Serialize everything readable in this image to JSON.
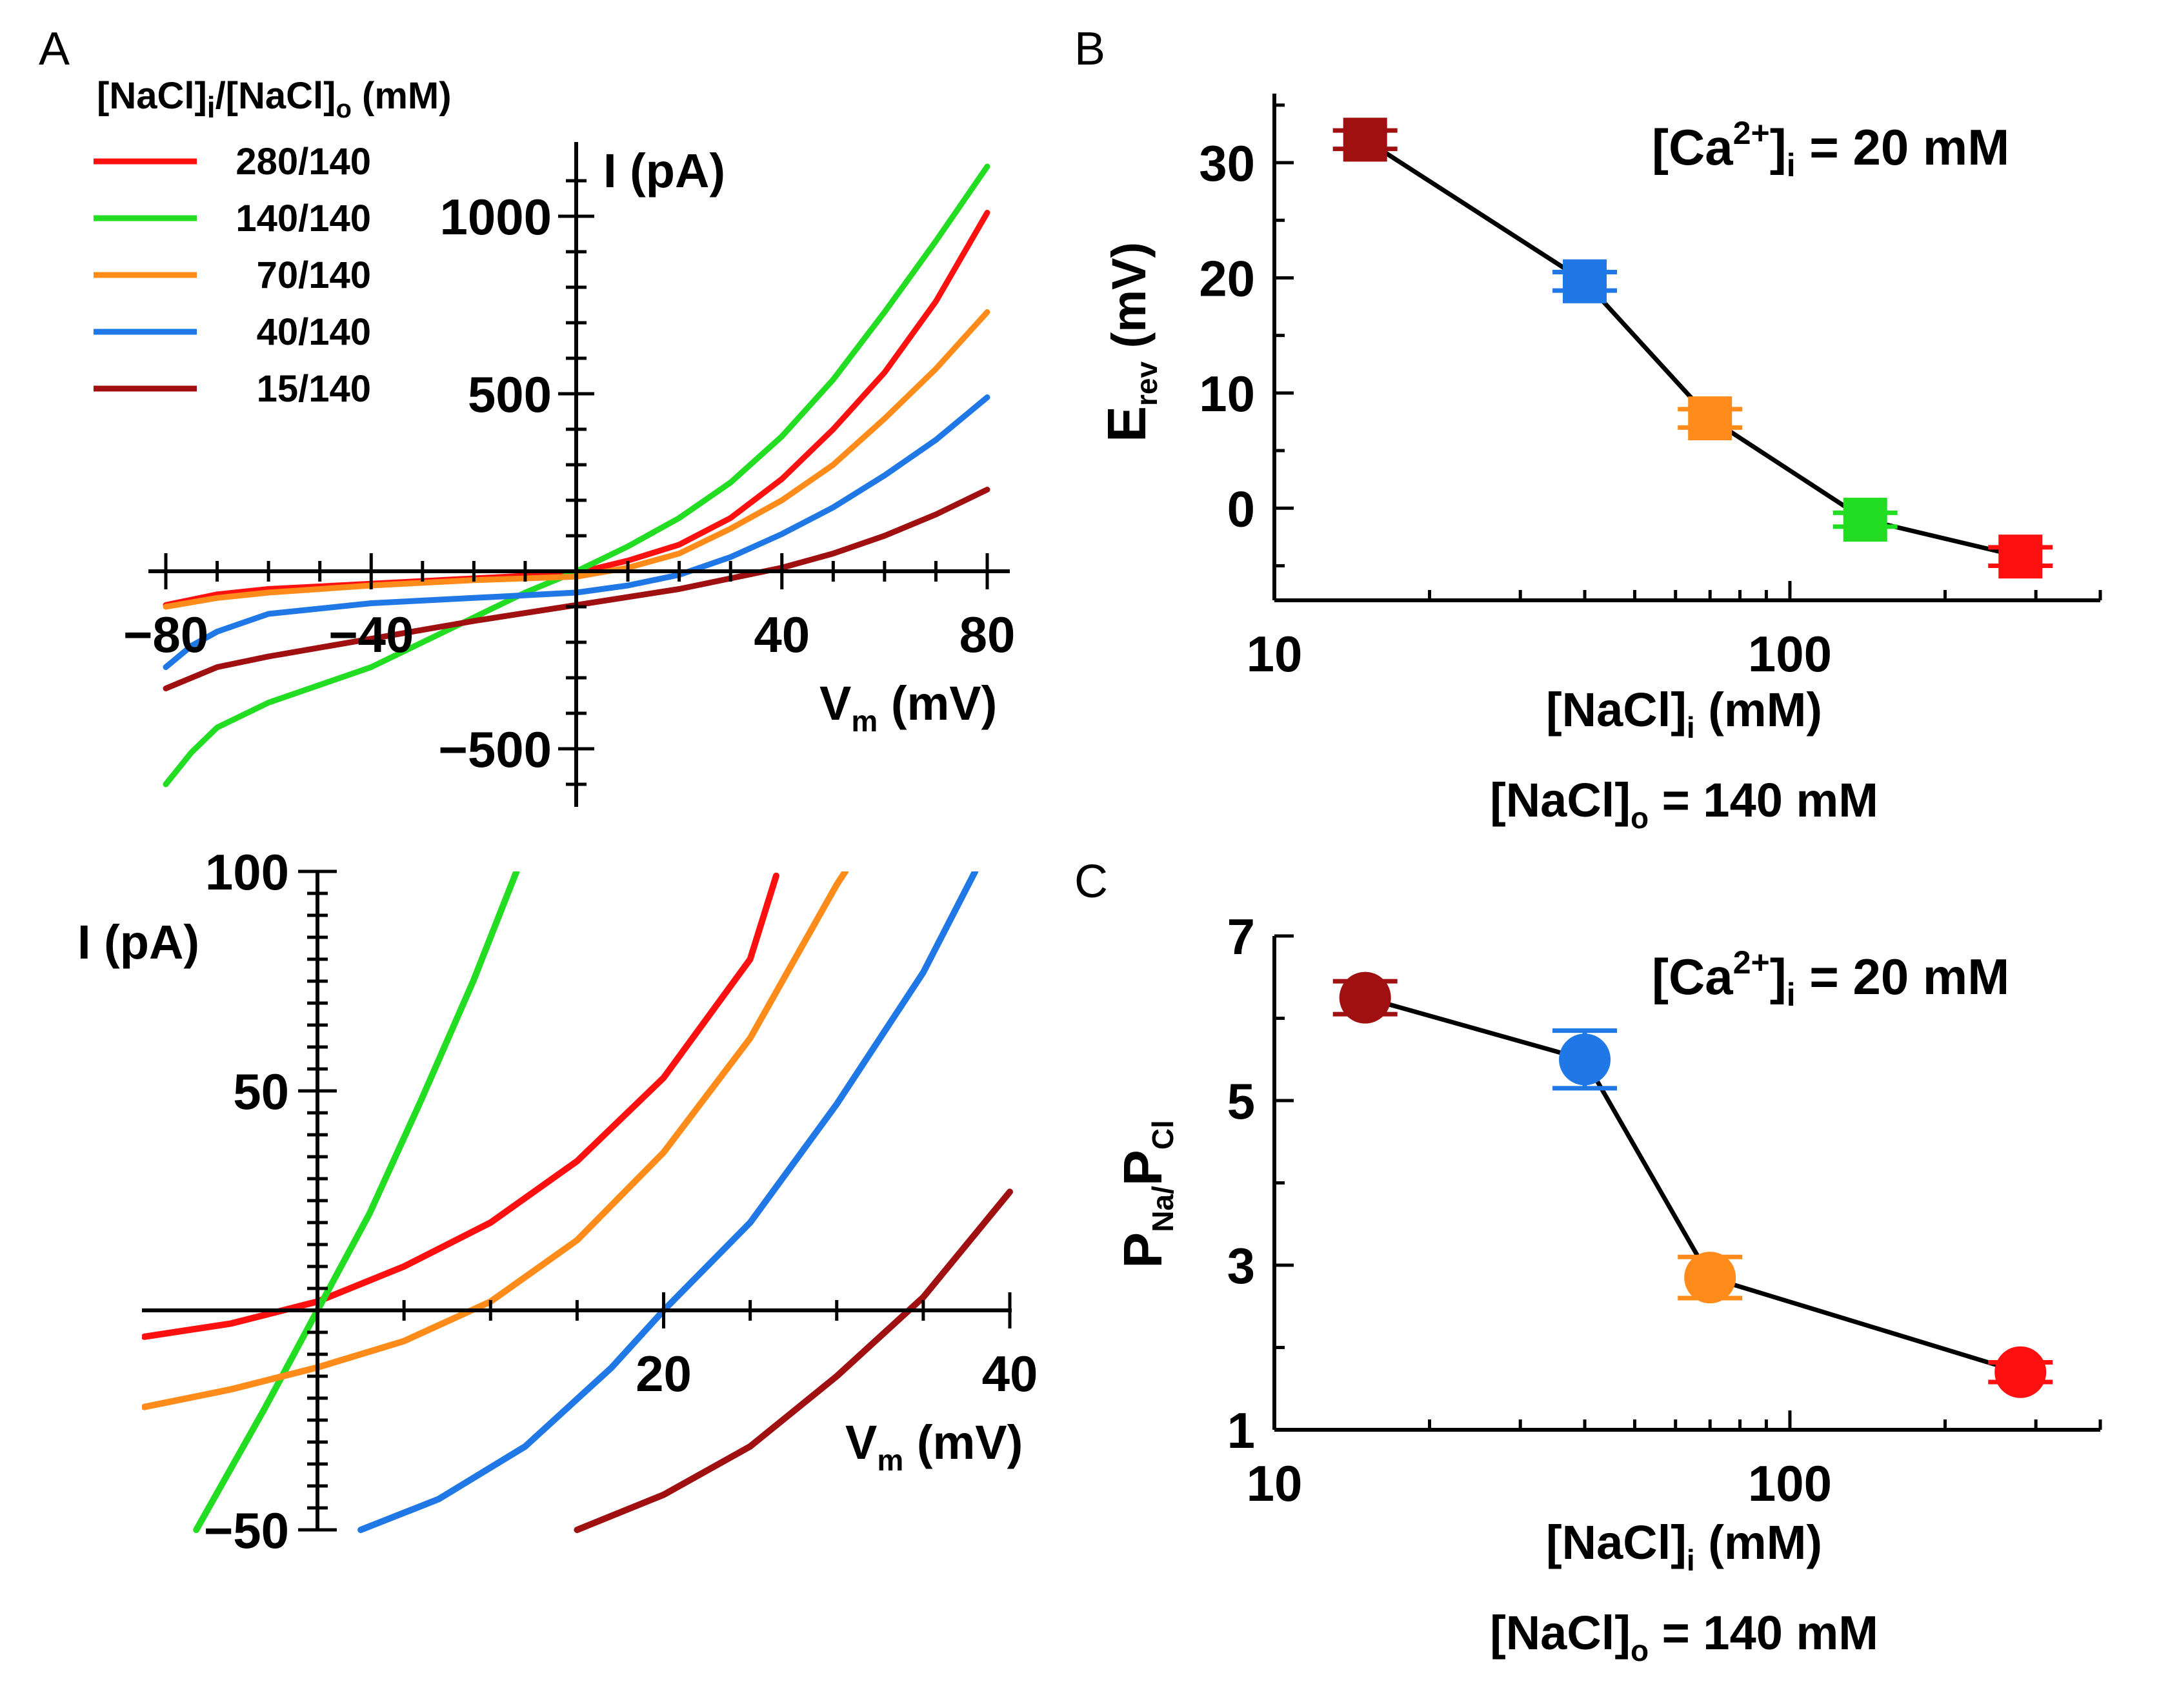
{
  "figure": {
    "panel_a_label": "A",
    "panel_b_label": "B",
    "panel_c_label": "C"
  },
  "colors": {
    "280/140": "#ff1010",
    "140/140": "#22dd22",
    "70/140": "#ff8c1a",
    "40/140": "#1f78e6",
    "15/140": "#a01010"
  },
  "legend": {
    "title_main": "[NaCl]",
    "title_sub1": "i",
    "title_mid": "/[NaCl]",
    "title_sub2": "o",
    "title_end": " (mM)",
    "entries": [
      "280/140",
      "140/140",
      "70/140",
      "40/140",
      "15/140"
    ]
  },
  "chart_data": [
    {
      "id": "A-top",
      "type": "line",
      "xlabel_main": "V",
      "xlabel_sub": "m",
      "xlabel_end": " (mV)",
      "ylabel": "I (pA)",
      "xlim": [
        -80,
        80
      ],
      "ylim": [
        -600,
        1150
      ],
      "xticks": [
        "−80",
        "−40",
        "40",
        "80"
      ],
      "xtick_values": [
        -80,
        -40,
        40,
        80
      ],
      "yticks": [
        "−500",
        "500",
        "1000"
      ],
      "ytick_values": [
        -500,
        500,
        1000
      ],
      "series": [
        {
          "name": "280/140",
          "x": [
            -80,
            -70,
            -60,
            -40,
            -20,
            0,
            10,
            20,
            30,
            40,
            50,
            60,
            70,
            80
          ],
          "values": [
            -95,
            -65,
            -50,
            -35,
            -20,
            -5,
            30,
            75,
            150,
            260,
            400,
            560,
            760,
            1010
          ]
        },
        {
          "name": "140/140",
          "x": [
            -80,
            -75,
            -70,
            -60,
            -50,
            -40,
            -30,
            -20,
            -10,
            0,
            10,
            20,
            30,
            40,
            50,
            60,
            70,
            80
          ],
          "values": [
            -600,
            -510,
            -440,
            -370,
            -320,
            -270,
            -200,
            -130,
            -60,
            0,
            70,
            150,
            250,
            380,
            540,
            730,
            930,
            1140
          ]
        },
        {
          "name": "70/140",
          "x": [
            -80,
            -70,
            -60,
            -40,
            -20,
            0,
            10,
            20,
            30,
            40,
            50,
            60,
            70,
            80
          ],
          "values": [
            -100,
            -75,
            -60,
            -40,
            -25,
            -15,
            10,
            50,
            120,
            200,
            300,
            430,
            570,
            730
          ]
        },
        {
          "name": "40/140",
          "x": [
            -80,
            -75,
            -70,
            -60,
            -40,
            -20,
            0,
            10,
            20,
            30,
            40,
            50,
            60,
            70,
            80
          ],
          "values": [
            -270,
            -210,
            -170,
            -120,
            -90,
            -75,
            -60,
            -40,
            -10,
            40,
            105,
            180,
            270,
            370,
            490
          ]
        },
        {
          "name": "15/140",
          "x": [
            -80,
            -70,
            -60,
            -40,
            -20,
            0,
            20,
            30,
            40,
            50,
            60,
            70,
            80
          ],
          "values": [
            -330,
            -270,
            -240,
            -190,
            -140,
            -95,
            -50,
            -20,
            10,
            50,
            100,
            160,
            230
          ]
        }
      ]
    },
    {
      "id": "A-bottom",
      "type": "line",
      "xlabel_main": "V",
      "xlabel_sub": "m",
      "xlabel_end": " (mV)",
      "ylabel": "I (pA)",
      "xlim": [
        -10,
        40
      ],
      "ylim": [
        -50,
        100
      ],
      "xticks": [
        "20",
        "40"
      ],
      "xtick_values": [
        20,
        40
      ],
      "yticks": [
        "−50",
        "50",
        "100"
      ],
      "ytick_values": [
        -50,
        50,
        100
      ],
      "series": [
        {
          "name": "280/140",
          "x": [
            -10,
            -5,
            0,
            5,
            10,
            15,
            20,
            25,
            26.5
          ],
          "values": [
            -6,
            -3,
            2,
            10,
            20,
            34,
            53,
            80,
            99
          ]
        },
        {
          "name": "140/140",
          "x": [
            -7,
            -5,
            -3,
            0,
            3,
            6,
            9,
            11.5
          ],
          "values": [
            -50,
            -36,
            -22,
            0,
            22,
            48,
            75,
            100
          ]
        },
        {
          "name": "70/140",
          "x": [
            -10,
            -5,
            0,
            5,
            10,
            15,
            20,
            25,
            30,
            30.5
          ],
          "values": [
            -22,
            -18,
            -13,
            -7,
            2,
            16,
            36,
            62,
            97,
            100
          ]
        },
        {
          "name": "40/140",
          "x": [
            2.5,
            7,
            12,
            17,
            20,
            25,
            30,
            35,
            38
          ],
          "values": [
            -50,
            -43,
            -31,
            -13,
            0,
            20,
            47,
            77,
            100
          ]
        },
        {
          "name": "15/140",
          "x": [
            15,
            20,
            25,
            30,
            35,
            40
          ],
          "values": [
            -50,
            -42,
            -31,
            -15,
            3,
            27
          ]
        }
      ]
    },
    {
      "id": "B",
      "type": "scatter",
      "xscale": "log",
      "xlim": [
        10,
        400
      ],
      "ylim": [
        -8,
        36
      ],
      "xticks": [
        "10",
        "100"
      ],
      "xtick_values": [
        10,
        100
      ],
      "yticks": [
        "0",
        "10",
        "20",
        "30"
      ],
      "ytick_values": [
        0,
        10,
        20,
        30
      ],
      "ylabel_main": "E",
      "ylabel_sub": "rev",
      "ylabel_end": " (mV)",
      "xlabel_main": "[NaCl]",
      "xlabel_sub": "i",
      "xlabel_end": " (mM)",
      "annotation_main": "[Ca",
      "annotation_sup": "2+",
      "annotation_mid": "]",
      "annotation_sub": "i",
      "annotation_end": " = 20 mM",
      "note_main": "[NaCl]",
      "note_sub": "o",
      "note_end": " = 140 mM",
      "points": [
        {
          "name": "15/140",
          "x": 15,
          "y": 32,
          "err": 0.8
        },
        {
          "name": "40/140",
          "x": 40,
          "y": 19.7,
          "err": 0.8
        },
        {
          "name": "70/140",
          "x": 70,
          "y": 7.8,
          "err": 0.8
        },
        {
          "name": "140/140",
          "x": 140,
          "y": -1,
          "err": 0.6
        },
        {
          "name": "280/140",
          "x": 280,
          "y": -4.2,
          "err": 0.8
        }
      ]
    },
    {
      "id": "C",
      "type": "scatter",
      "xscale": "log",
      "xlim": [
        10,
        400
      ],
      "ylim": [
        1,
        7
      ],
      "xticks": [
        "10",
        "100"
      ],
      "xtick_values": [
        10,
        100
      ],
      "yticks": [
        "1",
        "3",
        "5",
        "7"
      ],
      "ytick_values": [
        1,
        3,
        5,
        7
      ],
      "ylabel_p1": "P",
      "ylabel_s1": "Na/",
      "ylabel_p2": "P",
      "ylabel_s2": "Cl",
      "xlabel_main": "[NaCl]",
      "xlabel_sub": "i",
      "xlabel_end": " (mM)",
      "annotation_main": "[Ca",
      "annotation_sup": "2+",
      "annotation_mid": "]",
      "annotation_sub": "i",
      "annotation_end": " = 20 mM",
      "note_main": "[NaCl]",
      "note_sub": "o",
      "note_end": " = 140 mM",
      "points": [
        {
          "name": "15/140",
          "x": 15,
          "y": 6.25,
          "err": 0.2
        },
        {
          "name": "40/140",
          "x": 40,
          "y": 5.5,
          "err": 0.35
        },
        {
          "name": "70/140",
          "x": 70,
          "y": 2.85,
          "err": 0.25
        },
        {
          "name": "280/140",
          "x": 280,
          "y": 1.7,
          "err": 0.12
        }
      ]
    }
  ]
}
